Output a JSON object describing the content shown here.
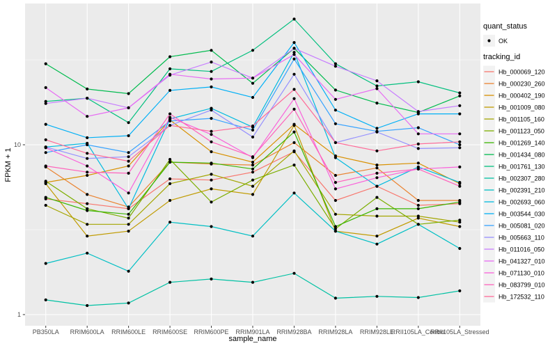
{
  "figure": {
    "y_axis_title": "FPKM + 1",
    "x_axis_title": "sample_name",
    "legend": {
      "quant_status_title": "quant_status",
      "quant_status_items": [
        {
          "label": "OK"
        }
      ],
      "tracking_id_title": "tracking_id"
    }
  },
  "colors": {
    "panel_bg": "#EBEBEB",
    "grid": "#FFFFFF",
    "key_bg": "#F2F2F2",
    "tick_mark": "#333333",
    "tick_text": "#4D4D4D",
    "point": "#000000"
  },
  "chart_data": {
    "type": "line",
    "title": "",
    "xlabel": "sample_name",
    "ylabel": "FPKM + 1",
    "y_scale": "log10",
    "grid": true,
    "legend_position": "right",
    "y_ticks": [
      1,
      10
    ],
    "y_minor_ticks": [
      3.162,
      31.623
    ],
    "ylim": [
      0.86,
      68
    ],
    "quant_status": "OK",
    "categories": [
      "PB350LA",
      "RRIM600LA",
      "RRIM600LE",
      "RRIM600SE",
      "RRIM600PE",
      "RRIM901LA",
      "RRIM928BA",
      "RRIM928LA",
      "RRIM928LE",
      "RRII105LA_Control",
      "RRII105LA_Stressed"
    ],
    "series": [
      {
        "name": "Hb_000069_120",
        "color": "#F8766D",
        "values": [
          4.8,
          4.5,
          4.2,
          6.3,
          6.2,
          6.9,
          9.1,
          4.7,
          5.7,
          4.4,
          4.5
        ]
      },
      {
        "name": "Hb_000230_260",
        "color": "#EA8331",
        "values": [
          7.4,
          5.1,
          4.3,
          7.9,
          7.7,
          7.6,
          10.3,
          6.6,
          7.3,
          4.7,
          4.7
        ]
      },
      {
        "name": "Hb_000402_190",
        "color": "#D89000",
        "values": [
          6.0,
          6.6,
          7.5,
          14.0,
          9.1,
          7.9,
          13.2,
          8.6,
          7.6,
          7.8,
          5.9
        ]
      },
      {
        "name": "Hb_001009_080",
        "color": "#C09B00",
        "values": [
          5.9,
          2.9,
          3.1,
          4.7,
          5.5,
          5.1,
          13.0,
          3.1,
          2.9,
          3.7,
          3.3
        ]
      },
      {
        "name": "Hb_001105_160",
        "color": "#A3A500",
        "values": [
          4.4,
          3.4,
          3.4,
          5.9,
          6.7,
          5.7,
          9.2,
          3.9,
          3.8,
          3.8,
          3.5
        ]
      },
      {
        "name": "Hb_001123_050",
        "color": "#7CAE00",
        "values": [
          6.1,
          4.2,
          3.7,
          8.2,
          4.6,
          6.2,
          7.6,
          3.2,
          4.9,
          3.4,
          3.6
        ]
      },
      {
        "name": "Hb_001269_140",
        "color": "#39B600",
        "values": [
          4.9,
          4.1,
          3.9,
          7.9,
          7.8,
          7.2,
          11.9,
          3.3,
          4.2,
          4.2,
          4.6
        ]
      },
      {
        "name": "Hb_001434_080",
        "color": "#00BB4E",
        "values": [
          30.0,
          21.3,
          20.0,
          33.0,
          36.0,
          23.0,
          37.0,
          21.0,
          17.6,
          15.5,
          19.4
        ]
      },
      {
        "name": "Hb_001761_130",
        "color": "#00BF7D",
        "values": [
          18.0,
          18.8,
          13.5,
          28.0,
          27.0,
          36.0,
          55.0,
          30.0,
          22.2,
          23.5,
          20.2
        ]
      },
      {
        "name": "Hb_002307_280",
        "color": "#00C1A3",
        "values": [
          1.22,
          1.13,
          1.17,
          1.55,
          1.62,
          1.55,
          1.75,
          1.25,
          1.28,
          1.26,
          1.38
        ]
      },
      {
        "name": "Hb_002391_210",
        "color": "#00BFC4",
        "values": [
          2.0,
          2.3,
          1.8,
          3.5,
          3.3,
          2.9,
          5.2,
          3.1,
          2.6,
          3.4,
          2.45
        ]
      },
      {
        "name": "Hb_002693_060",
        "color": "#00BAE0",
        "values": [
          9.7,
          10.2,
          4.2,
          14.2,
          16.4,
          12.7,
          35.0,
          8.4,
          5.7,
          7.4,
          6.0
        ]
      },
      {
        "name": "Hb_003544_030",
        "color": "#00B0F6",
        "values": [
          13.2,
          11.0,
          11.3,
          20.9,
          21.9,
          19.0,
          40.0,
          16.0,
          12.5,
          15.2,
          15.2
        ]
      },
      {
        "name": "Hb_005081_020",
        "color": "#35A2FF",
        "values": [
          9.0,
          10.0,
          9.0,
          13.8,
          14.3,
          12.2,
          32.0,
          13.3,
          12.0,
          12.6,
          10.0
        ]
      },
      {
        "name": "Hb_005663_110",
        "color": "#9590FF",
        "values": [
          9.7,
          8.3,
          8.5,
          13.0,
          16.0,
          11.1,
          26.0,
          10.3,
          11.9,
          9.5,
          9.6
        ]
      },
      {
        "name": "Hb_011016_050",
        "color": "#C77CFF",
        "values": [
          17.5,
          18.8,
          16.5,
          25.7,
          30.7,
          24.7,
          37.0,
          29.0,
          23.8,
          15.7,
          17.0
        ]
      },
      {
        "name": "Hb_041327_010",
        "color": "#E76BF3",
        "values": [
          21.7,
          14.7,
          16.5,
          26.0,
          24.4,
          24.7,
          34.0,
          18.5,
          21.4,
          11.6,
          11.6
        ]
      },
      {
        "name": "Hb_071130_010",
        "color": "#FA62DB",
        "values": [
          9.6,
          7.5,
          5.2,
          14.5,
          11.5,
          8.4,
          18.7,
          5.5,
          6.4,
          7.2,
          7.4
        ]
      },
      {
        "name": "Hb_083799_010",
        "color": "#FF62BC",
        "values": [
          7.5,
          6.9,
          6.8,
          15.2,
          10.4,
          8.5,
          16.2,
          6.0,
          6.8,
          7.2,
          5.7
        ]
      },
      {
        "name": "Hb_172532_110",
        "color": "#FF6A98",
        "values": [
          10.7,
          8.9,
          8.0,
          13.0,
          12.0,
          12.9,
          21.2,
          10.3,
          9.2,
          10.1,
          10.4
        ]
      }
    ]
  }
}
